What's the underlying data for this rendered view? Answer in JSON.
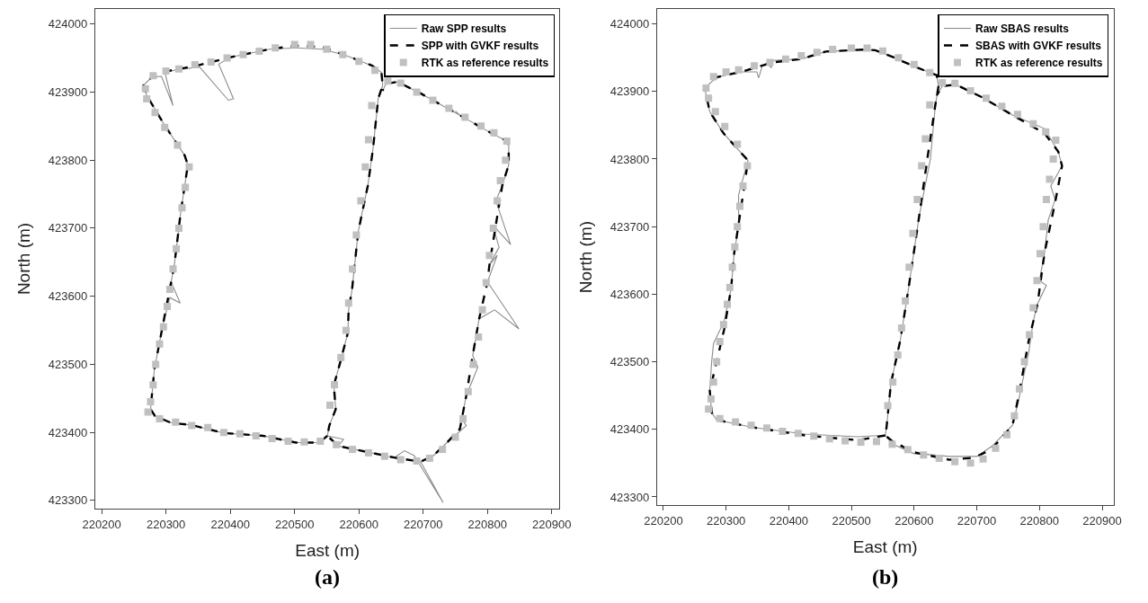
{
  "chart_data": [
    {
      "type": "line",
      "xlabel": "East (m)",
      "ylabel": "North (m)",
      "annotations": [
        "(a)"
      ],
      "xlim": [
        220190,
        220912
      ],
      "ylim": [
        423288,
        424022
      ],
      "xticks": [
        220200,
        220300,
        220400,
        220500,
        220600,
        220700,
        220800,
        220900
      ],
      "yticks": [
        423300,
        423400,
        423500,
        423600,
        423700,
        423800,
        423900,
        424000
      ],
      "grid": false,
      "legend": "top right",
      "series": [
        {
          "name": "Raw SPP results",
          "color": "#8c8c8c",
          "type": "line",
          "line_style": "solid",
          "marker": "none",
          "x": [
            220551,
            220538,
            220502,
            220451,
            220390,
            220339,
            220308,
            220283,
            220276,
            220282,
            220295,
            220306,
            220322,
            220308,
            220313,
            220323,
            220334,
            220329,
            220298,
            220270,
            220265,
            220278,
            220293,
            220311,
            220298,
            220352,
            220397,
            220405,
            220382,
            220400,
            220461,
            220502,
            220543,
            220579,
            220620,
            220635,
            220637,
            220630,
            220622,
            220614,
            220599,
            220589,
            220584,
            220583,
            220571,
            220561,
            220564,
            220554,
            220551,
            220576,
            220568,
            220604,
            220655,
            220671,
            220686,
            220731,
            220696,
            220716,
            220737,
            220767,
            220760,
            220767,
            220785,
            220777,
            220787,
            220811,
            220849,
            220800,
            220815,
            220803,
            220818,
            220808,
            220836,
            220813,
            220823,
            220833,
            220833,
            220828,
            220807,
            220757,
            220750,
            220757,
            220696,
            220660,
            220642,
            220637
          ],
          "values": [
            423395,
            423385,
            423385,
            423395,
            423399,
            423411,
            423414,
            423424,
            423434,
            423493,
            423557,
            423598,
            423590,
            423621,
            423646,
            423724,
            423793,
            423807,
            423851,
            423895,
            423910,
            423922,
            423923,
            423880,
            423930,
            423937,
            423888,
            423890,
            423941,
            423951,
            423963,
            423965,
            423963,
            423954,
            423939,
            423929,
            423910,
            423890,
            423817,
            423763,
            423695,
            423607,
            423581,
            423547,
            423503,
            423469,
            423434,
            423410,
            423395,
            423390,
            423380,
            423373,
            423363,
            423373,
            423366,
            423297,
            423357,
            423366,
            423385,
            423410,
            423420,
            423454,
            423496,
            423513,
            423567,
            423580,
            423552,
            423621,
            423660,
            423646,
            423672,
            423705,
            423676,
            423740,
            423763,
            423793,
            423822,
            423829,
            423839,
            423866,
            423872,
            423866,
            423898,
            423915,
            423912,
            423902
          ]
        },
        {
          "name": "SPP with GVKF results",
          "color": "#000000",
          "type": "line",
          "line_style": "dashed",
          "marker": "none",
          "x": [
            220551,
            220538,
            220502,
            220451,
            220390,
            220339,
            220308,
            220283,
            220276,
            220282,
            220295,
            220308,
            220313,
            220323,
            220334,
            220329,
            220298,
            220270,
            220265,
            220278,
            220298,
            220349,
            220400,
            220461,
            220502,
            220543,
            220579,
            220620,
            220635,
            220637,
            220630,
            220622,
            220614,
            220599,
            220589,
            220584,
            220583,
            220571,
            220561,
            220564,
            220554,
            220551,
            220568,
            220604,
            220655,
            220696,
            220716,
            220737,
            220757,
            220767,
            220777,
            220787,
            220800,
            220803,
            220813,
            220823,
            220833,
            220833,
            220828,
            220807,
            220757,
            220696,
            220660,
            220642,
            220637
          ],
          "values": [
            423395,
            423385,
            423385,
            423395,
            423399,
            423411,
            423414,
            423424,
            423434,
            423493,
            423557,
            423621,
            423646,
            423724,
            423793,
            423807,
            423851,
            423895,
            423910,
            423922,
            423930,
            423939,
            423951,
            423963,
            423968,
            423966,
            423954,
            423939,
            423929,
            423910,
            423890,
            423817,
            423763,
            423695,
            423607,
            423581,
            423547,
            423503,
            423469,
            423434,
            423410,
            423395,
            423380,
            423373,
            423363,
            423357,
            423366,
            423385,
            423405,
            423454,
            423513,
            423567,
            423621,
            423646,
            423705,
            423763,
            423793,
            423822,
            423829,
            423839,
            423866,
            423898,
            423915,
            423912,
            423902
          ]
        },
        {
          "name": "RTK as reference results",
          "color": "#c0c0c0",
          "type": "scatter",
          "marker": "square",
          "x": [
            220272,
            220276,
            220280,
            220284,
            220290,
            220296,
            220302,
            220306,
            220311,
            220316,
            220320,
            220325,
            220330,
            220336,
            220318,
            220298,
            220283,
            220270,
            220268,
            220280,
            220300,
            220320,
            220345,
            220370,
            220395,
            220420,
            220445,
            220470,
            220500,
            220525,
            220550,
            220575,
            220600,
            220625,
            220620,
            220615,
            220610,
            220603,
            220596,
            220590,
            220584,
            220580,
            220572,
            220562,
            220555,
            220540,
            220515,
            220490,
            220465,
            220440,
            220415,
            220390,
            220365,
            220340,
            220315,
            220290,
            220565,
            220590,
            220615,
            220640,
            220665,
            220690,
            220710,
            220730,
            220750,
            220762,
            220770,
            220778,
            220786,
            220792,
            220798,
            220803,
            220809,
            220815,
            220820,
            220828,
            220830,
            220810,
            220790,
            220765,
            220740,
            220715,
            220690,
            220665,
            220645
          ],
          "values": [
            423430,
            423445,
            423470,
            423500,
            423530,
            423555,
            423585,
            423610,
            423640,
            423670,
            423700,
            423730,
            423760,
            423790,
            423822,
            423848,
            423870,
            423890,
            423905,
            423924,
            423931,
            423934,
            423940,
            423944,
            423950,
            423955,
            423960,
            423965,
            423970,
            423970,
            423963,
            423955,
            423945,
            423932,
            423880,
            423830,
            423790,
            423740,
            423690,
            423640,
            423590,
            423550,
            423510,
            423470,
            423440,
            423387,
            423386,
            423387,
            423391,
            423395,
            423398,
            423400,
            423407,
            423410,
            423415,
            423420,
            423382,
            423375,
            423370,
            423365,
            423360,
            423358,
            423362,
            423375,
            423393,
            423420,
            423460,
            423500,
            423540,
            423580,
            423620,
            423660,
            423700,
            423740,
            423770,
            423800,
            423828,
            423840,
            423850,
            423863,
            423876,
            423888,
            423900,
            423913,
            423916
          ]
        }
      ]
    },
    {
      "type": "line",
      "xlabel": "East (m)",
      "ylabel": "North (m)",
      "annotations": [
        "(b)"
      ],
      "xlim": [
        220190,
        220918
      ],
      "ylim": [
        423288,
        424022
      ],
      "xticks": [
        220200,
        220300,
        220400,
        220500,
        220600,
        220700,
        220800,
        220900
      ],
      "yticks": [
        423300,
        423400,
        423500,
        423600,
        423700,
        423800,
        423900,
        424000
      ],
      "grid": false,
      "legend": "top right",
      "series": [
        {
          "name": "Raw SBAS results",
          "color": "#8c8c8c",
          "type": "line",
          "line_style": "solid",
          "marker": "none",
          "x": [
            220554,
            220527,
            220510,
            220426,
            220342,
            220285,
            220277,
            220274,
            220277,
            220280,
            220297,
            220308,
            220313,
            220320,
            220320,
            220335,
            220324,
            220296,
            220274,
            220266,
            220285,
            220324,
            220349,
            220352,
            220358,
            220365,
            220372,
            220375,
            220420,
            220459,
            220521,
            220538,
            220566,
            220600,
            220636,
            220639,
            220634,
            220626,
            220608,
            220591,
            220578,
            220563,
            220556,
            220554,
            220566,
            220600,
            220620,
            220656,
            220700,
            220724,
            220757,
            220766,
            220783,
            220790,
            220797,
            220811,
            220800,
            220808,
            220814,
            220825,
            220818,
            220836,
            220830,
            220808,
            220757,
            220707,
            220667,
            220645,
            220636
          ],
          "values": [
            423391,
            423390,
            423389,
            423393,
            423403,
            423414,
            423425,
            423457,
            423500,
            423527,
            423560,
            423608,
            423661,
            423700,
            423747,
            423798,
            423809,
            423838,
            423870,
            423905,
            423921,
            423929,
            423929,
            423920,
            423938,
            423942,
            423935,
            423946,
            423948,
            423959,
            423962,
            423961,
            423951,
            423937,
            423924,
            423908,
            423881,
            423800,
            423715,
            423608,
            423532,
            423468,
            423403,
            423391,
            423378,
            423364,
            423363,
            423360,
            423360,
            423375,
            423406,
            423440,
            423515,
            423560,
            423586,
            423613,
            423620,
            423661,
            423710,
            423740,
            423760,
            423790,
            423811,
            423845,
            423865,
            423892,
            423910,
            423908,
            423894
          ]
        },
        {
          "name": "SBAS with GVKF results",
          "color": "#000000",
          "type": "line",
          "line_style": "dashed",
          "marker": "none",
          "x": [
            220554,
            220510,
            220426,
            220342,
            220285,
            220277,
            220274,
            220285,
            220297,
            220308,
            220313,
            220327,
            220335,
            220324,
            220296,
            220274,
            220266,
            220285,
            220324,
            220375,
            220420,
            220459,
            220521,
            220538,
            220566,
            220600,
            220636,
            220639,
            220634,
            220622,
            220608,
            220591,
            220578,
            220563,
            220556,
            220554,
            220566,
            220600,
            220656,
            220696,
            220724,
            220757,
            220766,
            220783,
            220797,
            220808,
            220825,
            220836,
            220830,
            220808,
            220757,
            220707,
            220667,
            220645,
            220636
          ],
          "values": [
            423391,
            423384,
            423391,
            423403,
            423414,
            423425,
            423457,
            423500,
            423548,
            423608,
            423661,
            423747,
            423798,
            423809,
            423838,
            423870,
            423905,
            423921,
            423929,
            423943,
            423948,
            423959,
            423962,
            423961,
            423951,
            423937,
            423924,
            423908,
            423881,
            423806,
            423715,
            423608,
            423532,
            423468,
            423403,
            423391,
            423382,
            423366,
            423355,
            423358,
            423371,
            423406,
            423446,
            423532,
            423586,
            423661,
            423736,
            423790,
            423811,
            423838,
            423865,
            423892,
            423910,
            423908,
            423894
          ]
        },
        {
          "name": "RTK as reference results",
          "color": "#c0c0c0",
          "type": "scatter",
          "marker": "square",
          "x": [
            220272,
            220276,
            220280,
            220285,
            220290,
            220296,
            220302,
            220306,
            220310,
            220314,
            220318,
            220322,
            220327,
            220334,
            220318,
            220298,
            220283,
            220272,
            220268,
            220280,
            220300,
            220320,
            220345,
            220370,
            220395,
            220420,
            220445,
            220470,
            220500,
            220525,
            220550,
            220575,
            220600,
            220625,
            220625,
            220618,
            220612,
            220605,
            220598,
            220592,
            220586,
            220580,
            220574,
            220566,
            220558,
            220540,
            220515,
            220490,
            220465,
            220440,
            220415,
            220390,
            220365,
            220340,
            220315,
            220290,
            220565,
            220590,
            220615,
            220640,
            220665,
            220690,
            220710,
            220730,
            220748,
            220760,
            220768,
            220776,
            220784,
            220790,
            220796,
            220801,
            220806,
            220811,
            220816,
            220822,
            220826,
            220810,
            220790,
            220765,
            220740,
            220715,
            220690,
            220665,
            220645
          ],
          "values": [
            423430,
            423445,
            423470,
            423500,
            423530,
            423555,
            423585,
            423610,
            423640,
            423670,
            423700,
            423730,
            423760,
            423790,
            423822,
            423848,
            423870,
            423890,
            423905,
            423922,
            423929,
            423932,
            423938,
            423943,
            423948,
            423953,
            423958,
            423962,
            423964,
            423964,
            423960,
            423950,
            423940,
            423928,
            423880,
            423830,
            423790,
            423740,
            423690,
            423640,
            423590,
            423550,
            423510,
            423470,
            423435,
            423382,
            423381,
            423383,
            423386,
            423390,
            423394,
            423397,
            423402,
            423406,
            423411,
            423416,
            423378,
            423370,
            423362,
            423357,
            423352,
            423350,
            423356,
            423372,
            423392,
            423420,
            423460,
            423500,
            423540,
            423580,
            423620,
            423660,
            423700,
            423740,
            423770,
            423800,
            423828,
            423840,
            423852,
            423866,
            423878,
            423890,
            423901,
            423912,
            423913
          ]
        }
      ]
    }
  ]
}
